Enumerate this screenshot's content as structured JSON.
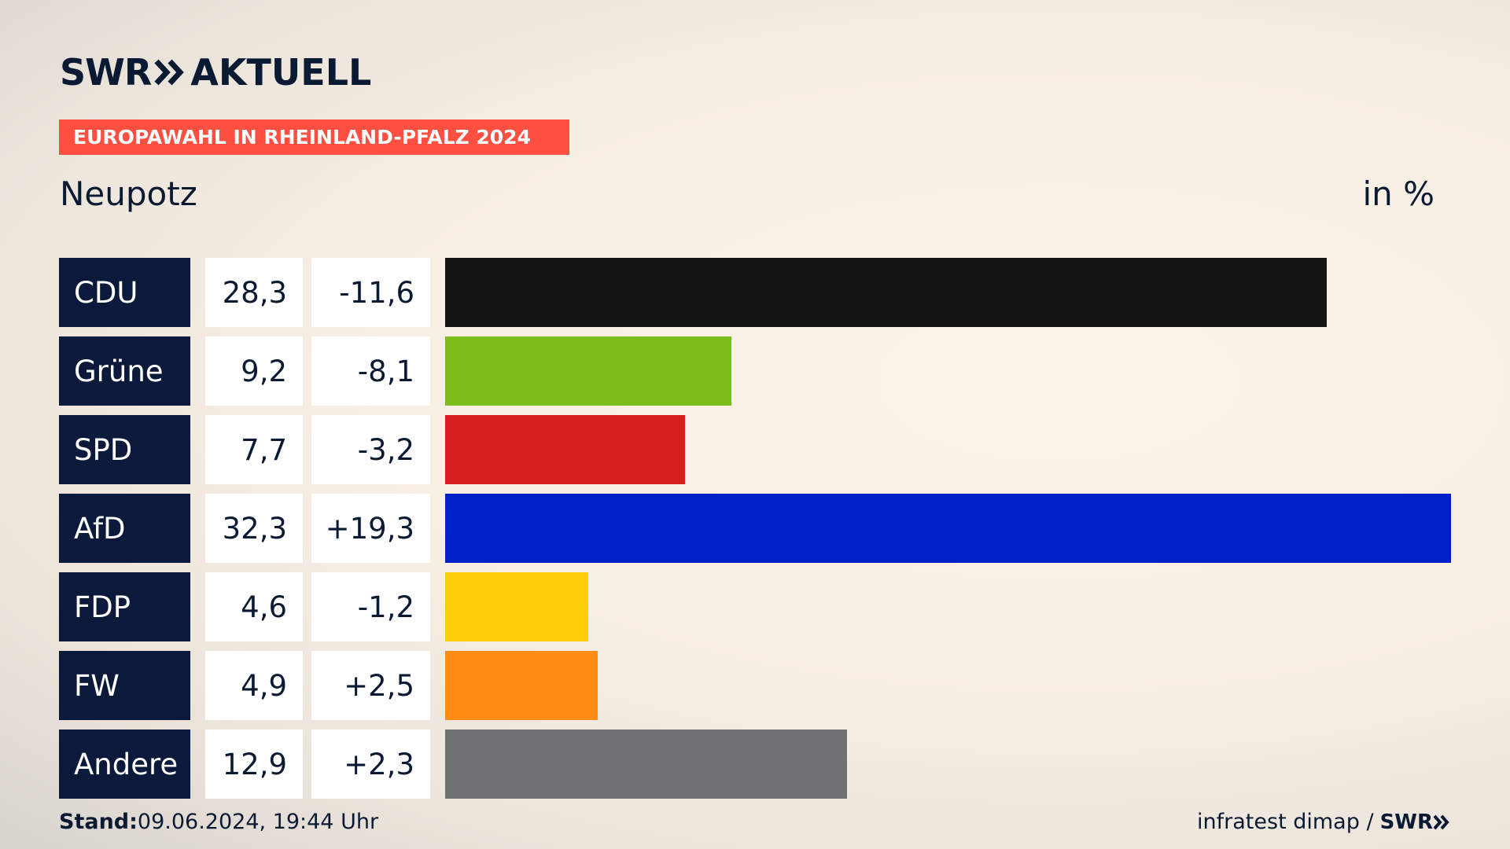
{
  "header": {
    "logo_left": "SWR",
    "logo_right": "AKTUELL",
    "badge": "EUROPAWAHL IN RHEINLAND-PFALZ 2024",
    "region": "Neupotz",
    "unit": "in %"
  },
  "colors": {
    "navy": "#0b1a3b",
    "badge": "#ff4f41"
  },
  "chart_data": {
    "type": "bar",
    "orientation": "horizontal",
    "categories": [
      "CDU",
      "Grüne",
      "SPD",
      "AfD",
      "FDP",
      "FW",
      "Andere"
    ],
    "values": [
      28.3,
      9.2,
      7.7,
      32.3,
      4.6,
      4.9,
      12.9
    ],
    "value_labels": [
      "28,3",
      "9,2",
      "7,7",
      "32,3",
      "4,6",
      "4,9",
      "12,9"
    ],
    "diff_labels": [
      "-11,6",
      "-8,1",
      "-3,2",
      "+19,3",
      "-1,2",
      "+2,5",
      "+2,3"
    ],
    "bar_colors": [
      "#141414",
      "#7abd1c",
      "#d81e1e",
      "#0021c8",
      "#ffce08",
      "#ff8c17",
      "#707173"
    ]
  },
  "footer": {
    "stand_label": "Stand:",
    "stand_value": "09.06.2024, 19:44 Uhr",
    "source": "infratest dimap /",
    "source_logo": "SWR"
  }
}
